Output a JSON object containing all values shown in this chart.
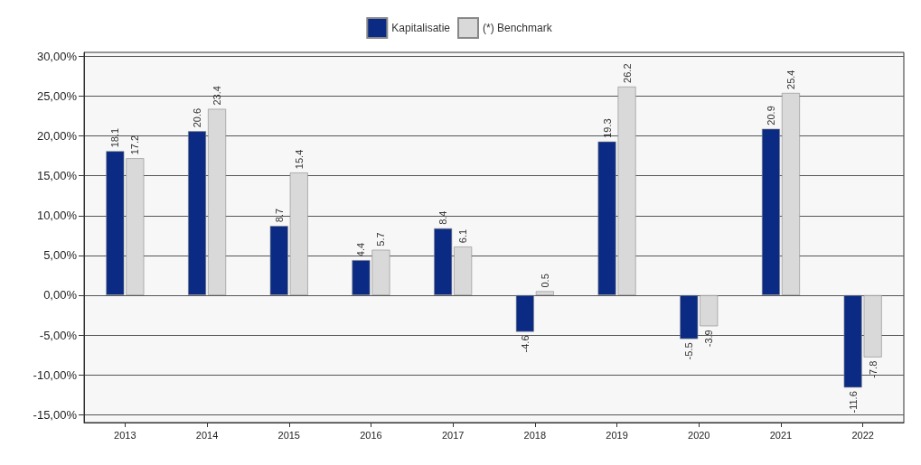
{
  "chart_data": {
    "type": "bar",
    "categories": [
      "2013",
      "2014",
      "2015",
      "2016",
      "2017",
      "2018",
      "2019",
      "2020",
      "2021",
      "2022"
    ],
    "series": [
      {
        "name": "Kapitalisatie",
        "color": "#0a2a84",
        "values": [
          18.1,
          20.6,
          8.7,
          4.4,
          8.4,
          -4.6,
          19.3,
          -5.5,
          20.9,
          -11.6
        ]
      },
      {
        "name": "(*) Benchmark",
        "color": "#d9d9d9",
        "values": [
          17.2,
          23.4,
          15.4,
          5.7,
          6.1,
          0.5,
          26.2,
          -3.9,
          25.4,
          -7.8
        ]
      }
    ],
    "ylim": [
      -16,
      30.5
    ],
    "yticks": [
      {
        "value": -15,
        "label": "-15,00%"
      },
      {
        "value": -10,
        "label": "-10,00%"
      },
      {
        "value": -5,
        "label": "-5,00%"
      },
      {
        "value": 0,
        "label": "0,00%"
      },
      {
        "value": 5,
        "label": "5,00%"
      },
      {
        "value": 10,
        "label": "10,00%"
      },
      {
        "value": 15,
        "label": "15,00%"
      },
      {
        "value": 20,
        "label": "20,00%"
      },
      {
        "value": 25,
        "label": "25,00%"
      },
      {
        "value": 30,
        "label": "30,00%"
      }
    ],
    "grid": "y",
    "legend": "top",
    "data_labels": true
  }
}
